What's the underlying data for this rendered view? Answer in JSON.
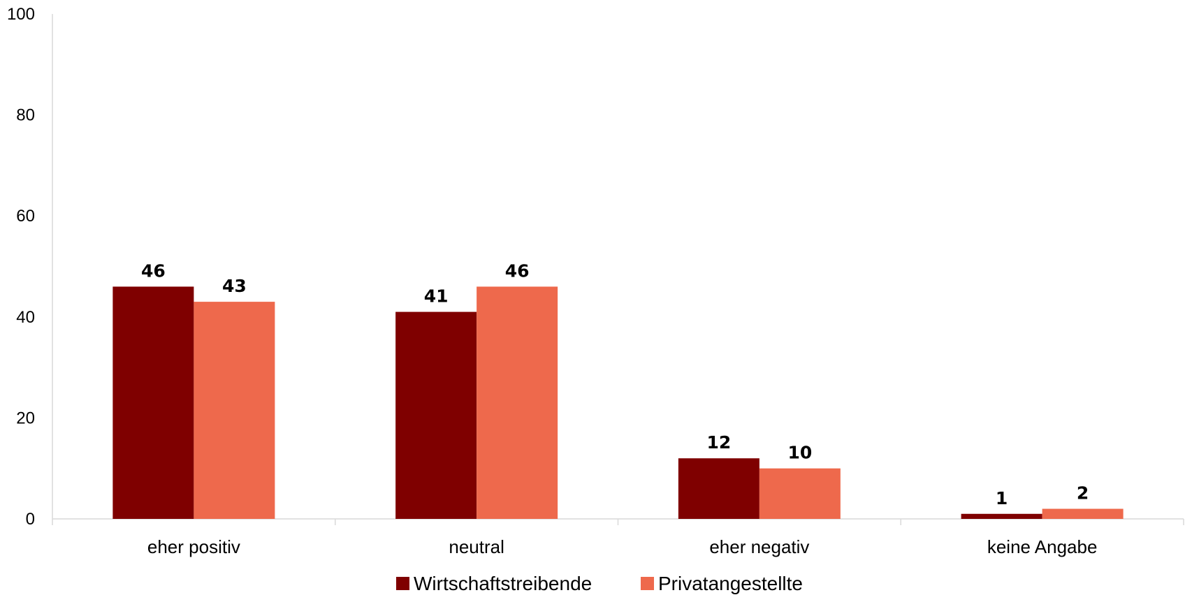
{
  "chart_data": {
    "type": "bar",
    "title": "",
    "xlabel": "",
    "ylabel": "",
    "ylim": [
      0,
      100
    ],
    "yticks": [
      "0",
      "20",
      "40",
      "60",
      "80",
      "100"
    ],
    "grid": false,
    "legend_position": "bottom",
    "categories": [
      "eher positiv",
      "neutral",
      "eher negativ",
      "keine Angabe"
    ],
    "series": [
      {
        "name": "Wirtschaftstreibende",
        "color": "#7f0000",
        "values": [
          46,
          41,
          12,
          1
        ]
      },
      {
        "name": "Privatangestellte",
        "color": "#ee694c",
        "values": [
          43,
          46,
          10,
          2
        ]
      }
    ]
  }
}
